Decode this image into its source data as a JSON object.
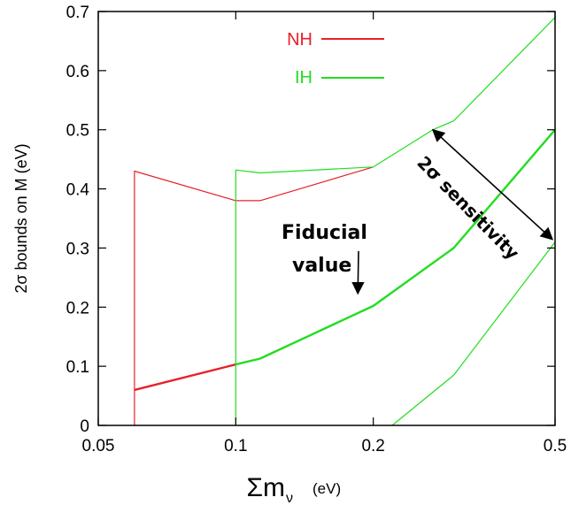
{
  "chart_data": {
    "type": "line",
    "xlabel_main": "Σm",
    "xlabel_sub": "ν",
    "xlabel_unit": "(eV)",
    "ylabel": "2σ bounds on M  (eV)",
    "x_scale": "log",
    "xlim": [
      0.05,
      0.5
    ],
    "ylim": [
      0,
      0.7
    ],
    "x_ticks": [
      {
        "value": 0.05,
        "label": "0.05"
      },
      {
        "value": 0.1,
        "label": "0.1"
      },
      {
        "value": 0.2,
        "label": "0.2"
      },
      {
        "value": 0.5,
        "label": "0.5"
      }
    ],
    "y_ticks": [
      {
        "value": 0,
        "label": "0"
      },
      {
        "value": 0.1,
        "label": "0.1"
      },
      {
        "value": 0.2,
        "label": "0.2"
      },
      {
        "value": 0.3,
        "label": "0.3"
      },
      {
        "value": 0.4,
        "label": "0.4"
      },
      {
        "value": 0.5,
        "label": "0.5"
      },
      {
        "value": 0.6,
        "label": "0.6"
      },
      {
        "value": 0.7,
        "label": "0.7"
      }
    ],
    "grid": false,
    "legend": {
      "placement": "top-center",
      "entries": [
        {
          "label": "NH",
          "color": "#e8202a"
        },
        {
          "label": "IH",
          "color": "#22dd22"
        }
      ]
    },
    "series": [
      {
        "key": "nh_upper",
        "color": "#e8202a",
        "width": 1.2,
        "points": [
          [
            0.06,
            0
          ],
          [
            0.06,
            0.43
          ],
          [
            0.1,
            0.38
          ],
          [
            0.113,
            0.38
          ],
          [
            0.2,
            0.437
          ]
        ]
      },
      {
        "key": "nh_fiducial",
        "color": "#e8202a",
        "width": 2.4,
        "points": [
          [
            0.06,
            0.06
          ],
          [
            0.1,
            0.103
          ]
        ]
      },
      {
        "key": "ih_upper",
        "color": "#22dd22",
        "width": 1.2,
        "points": [
          [
            0.1,
            0
          ],
          [
            0.1,
            0.432
          ],
          [
            0.113,
            0.427
          ],
          [
            0.2,
            0.437
          ],
          [
            0.27,
            0.5
          ],
          [
            0.3,
            0.515
          ],
          [
            0.5,
            0.69
          ]
        ]
      },
      {
        "key": "ih_fiducial",
        "color": "#22dd22",
        "width": 2.4,
        "points": [
          [
            0.1,
            0.103
          ],
          [
            0.113,
            0.113
          ],
          [
            0.2,
            0.202
          ],
          [
            0.3,
            0.3
          ],
          [
            0.5,
            0.5
          ]
        ]
      },
      {
        "key": "ih_lower",
        "color": "#22dd22",
        "width": 1.2,
        "points": [
          [
            0.22,
            0
          ],
          [
            0.3,
            0.085
          ],
          [
            0.5,
            0.31
          ]
        ]
      }
    ],
    "annotations": {
      "fiducial": {
        "line1": "Fiducial",
        "line2": "value",
        "arrow_to": [
          0.185,
          0.223
        ]
      },
      "sensitivity": {
        "text_prefix": "2σ",
        "text_rest": " sensitivity",
        "from": [
          0.27,
          0.5
        ],
        "to": [
          0.5,
          0.31
        ]
      }
    }
  }
}
